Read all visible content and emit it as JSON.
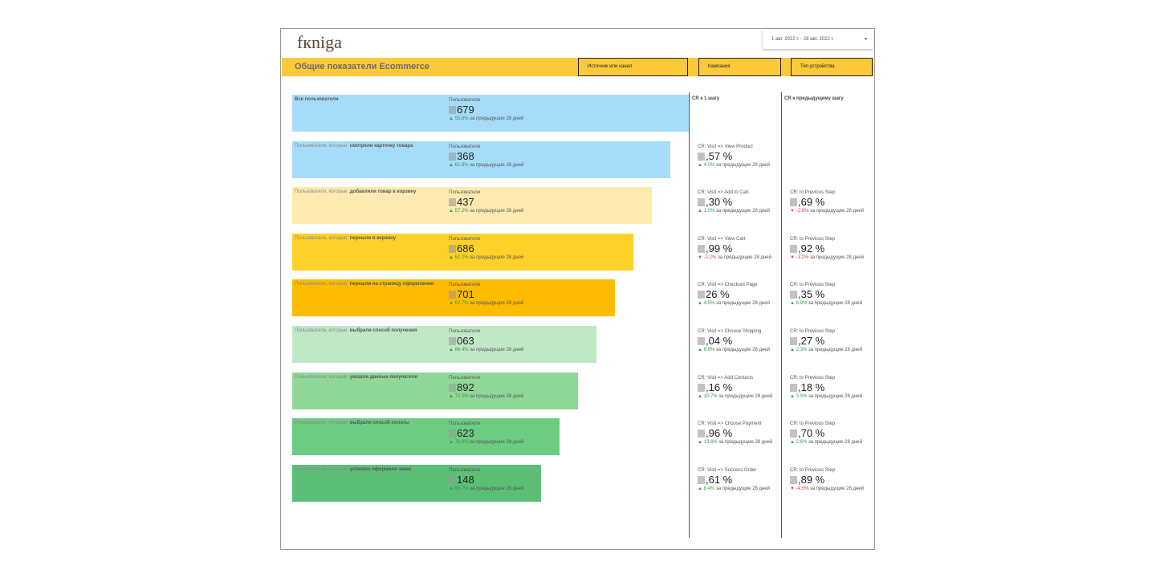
{
  "header": {
    "logo": "fкniga",
    "date_range": "1 авг. 2022 г. - 28 авг. 2022 г.",
    "title": "Общие показатели Ecommerce",
    "filters": [
      "Источник или канал",
      "Кампания",
      "Тип устройства"
    ]
  },
  "columns": [
    "CR к 1 шагу",
    "CR к предыдущему шагу"
  ],
  "metric": "Пользователи",
  "period": "за предыдущие 28 дней",
  "funnel": [
    {
      "label": "Все пользователи",
      "color": "#a6dbfa",
      "value": "679",
      "change": "55.6%"
    },
    {
      "prefix": "Пользователи, которые:",
      "label": "смотрели карточку товара",
      "color": "#a6dbfa",
      "value": "368",
      "change": "61.8%",
      "cr_first": {
        "name": "CR: Visit => View Product",
        "value": ",57 %",
        "change": "4.0%"
      }
    },
    {
      "prefix": "Пользователи, которые:",
      "label": "добавляли товар в корзину",
      "color": "#fdeab0",
      "value": "437",
      "change": "57.2%",
      "cr_first": {
        "name": "CR: Visit => Add to Cart",
        "value": ",30 %",
        "change": "1.0%"
      },
      "cr_prev": {
        "name": "CR: to Previous Step",
        "value": ",69 %",
        "change": "-2.8%"
      }
    },
    {
      "prefix": "Пользователи, которые:",
      "label": "перешли в корзину",
      "color": "#fdd02a",
      "value": "686",
      "change": "52.2%",
      "cr_first": {
        "name": "CR: Visit => View Cart",
        "value": ",99 %",
        "change": "-2.2%"
      },
      "cr_prev": {
        "name": "CR: to Previous Step",
        "value": ",92 %",
        "change": "-3.2%"
      }
    },
    {
      "prefix": "Пользователи, которые:",
      "label": "перешли на страницу оформления",
      "color": "#fdbc00",
      "value": "701",
      "change": "62.7%",
      "cr_first": {
        "name": "CR: Visit => Checkout Page",
        "value": "26 %",
        "change": "4.5%"
      },
      "cr_prev": {
        "name": "CR: to Previous Step",
        "value": ",35 %",
        "change": "6.9%"
      }
    },
    {
      "prefix": "Пользователи, которые:",
      "label": "выбрали способ получения",
      "color": "#c1e8c6",
      "value": "063",
      "change": "66.4%",
      "cr_first": {
        "name": "CR: Visit => Choose Shipping",
        "value": ",04 %",
        "change": "6.9%"
      },
      "cr_prev": {
        "name": "CR: to Previous Step",
        "value": ",27 %",
        "change": "2.3%"
      }
    },
    {
      "prefix": "Пользователи, которые:",
      "label": "указали данные получателя",
      "color": "#90d79a",
      "value": "892",
      "change": "72.2%",
      "cr_first": {
        "name": "CR: Visit => Add Contacts",
        "value": ",16 %",
        "change": "10.7%"
      },
      "cr_prev": {
        "name": "CR: to Previous Step",
        "value": ",18 %",
        "change": "3.5%"
      }
    },
    {
      "prefix": "Пользователи, которые:",
      "label": "выбрали способ оплаты",
      "color": "#6ccc82",
      "value": "623",
      "change": "76.8%",
      "cr_first": {
        "name": "CR: Visit => Choose Payment",
        "value": ",96 %",
        "change": "13.6%"
      },
      "cr_prev": {
        "name": "CR: to Previous Step",
        "value": ",70 %",
        "change": "2.6%"
      }
    },
    {
      "prefix": "Пользователи, которые:",
      "label": "успешно оформили заказ",
      "color": "#5cbf76",
      "value": "148",
      "change": "68.7%",
      "cr_first": {
        "name": "CR: Visit => Success Order",
        "value": ",61 %",
        "change": "8.4%"
      },
      "cr_prev": {
        "name": "CR: to Previous Step",
        "value": ",89 %",
        "change": "-4.5%"
      }
    }
  ]
}
